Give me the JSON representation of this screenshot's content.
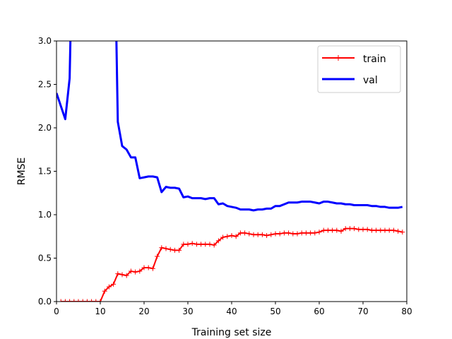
{
  "chart_data": {
    "type": "line",
    "title": "",
    "xlabel": "Training set size",
    "ylabel": "RMSE",
    "xlim": [
      0,
      80
    ],
    "ylim": [
      0,
      3
    ],
    "x_ticks": [
      0,
      10,
      20,
      30,
      40,
      50,
      60,
      70,
      80
    ],
    "y_ticks": [
      0.0,
      0.5,
      1.0,
      1.5,
      2.0,
      2.5,
      3.0
    ],
    "grid": false,
    "legend": "top-right",
    "series": [
      {
        "name": "train",
        "color": "#ff0000",
        "marker": "+",
        "x": [
          1,
          2,
          3,
          4,
          5,
          6,
          7,
          8,
          9,
          10,
          11,
          12,
          13,
          14,
          15,
          16,
          17,
          18,
          19,
          20,
          21,
          22,
          23,
          24,
          25,
          26,
          27,
          28,
          29,
          30,
          31,
          32,
          33,
          34,
          35,
          36,
          37,
          38,
          39,
          40,
          41,
          42,
          43,
          44,
          45,
          46,
          47,
          48,
          49,
          50,
          51,
          52,
          53,
          54,
          55,
          56,
          57,
          58,
          59,
          60,
          61,
          62,
          63,
          64,
          65,
          66,
          67,
          68,
          69,
          70,
          71,
          72,
          73,
          74,
          75,
          76,
          77,
          78,
          79
        ],
        "y": [
          0,
          0,
          0,
          0,
          0,
          0,
          0,
          0,
          0,
          0,
          0.12,
          0.17,
          0.2,
          0.32,
          0.31,
          0.3,
          0.35,
          0.34,
          0.35,
          0.39,
          0.39,
          0.38,
          0.52,
          0.62,
          0.61,
          0.6,
          0.59,
          0.59,
          0.66,
          0.66,
          0.67,
          0.66,
          0.66,
          0.66,
          0.66,
          0.65,
          0.7,
          0.74,
          0.75,
          0.76,
          0.75,
          0.79,
          0.79,
          0.78,
          0.77,
          0.77,
          0.77,
          0.76,
          0.77,
          0.78,
          0.78,
          0.79,
          0.79,
          0.78,
          0.78,
          0.79,
          0.79,
          0.79,
          0.79,
          0.8,
          0.82,
          0.82,
          0.82,
          0.82,
          0.81,
          0.84,
          0.84,
          0.84,
          0.83,
          0.83,
          0.83,
          0.82,
          0.82,
          0.82,
          0.82,
          0.82,
          0.82,
          0.81,
          0.8
        ]
      },
      {
        "name": "val",
        "color": "#0000ff",
        "marker": "",
        "x": [
          0,
          1,
          2,
          3,
          4,
          13,
          14,
          15,
          16,
          17,
          18,
          19,
          20,
          21,
          22,
          23,
          24,
          25,
          26,
          27,
          28,
          29,
          30,
          31,
          32,
          33,
          34,
          35,
          36,
          37,
          38,
          39,
          40,
          41,
          42,
          43,
          44,
          45,
          46,
          47,
          48,
          49,
          50,
          51,
          52,
          53,
          54,
          55,
          56,
          57,
          58,
          59,
          60,
          61,
          62,
          63,
          64,
          65,
          66,
          67,
          68,
          69,
          70,
          71,
          72,
          73,
          74,
          75,
          76,
          77,
          78,
          79
        ],
        "y": [
          2.4,
          2.25,
          2.1,
          2.57,
          5.0,
          5.0,
          2.07,
          1.79,
          1.75,
          1.66,
          1.66,
          1.42,
          1.43,
          1.44,
          1.44,
          1.43,
          1.26,
          1.32,
          1.31,
          1.31,
          1.3,
          1.2,
          1.21,
          1.19,
          1.19,
          1.19,
          1.18,
          1.19,
          1.19,
          1.12,
          1.13,
          1.1,
          1.09,
          1.08,
          1.06,
          1.06,
          1.06,
          1.05,
          1.06,
          1.06,
          1.07,
          1.07,
          1.1,
          1.1,
          1.12,
          1.14,
          1.14,
          1.14,
          1.15,
          1.15,
          1.15,
          1.14,
          1.13,
          1.15,
          1.15,
          1.14,
          1.13,
          1.13,
          1.12,
          1.12,
          1.11,
          1.11,
          1.11,
          1.11,
          1.1,
          1.1,
          1.09,
          1.09,
          1.08,
          1.08,
          1.08,
          1.09
        ]
      }
    ]
  }
}
